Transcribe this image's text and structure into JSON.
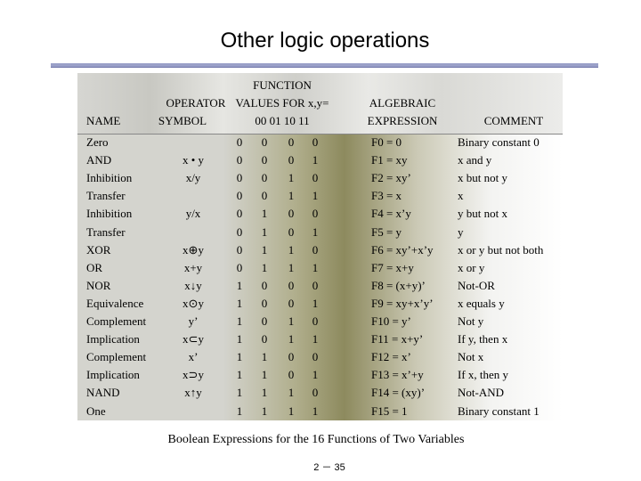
{
  "title": "Other logic operations",
  "headers": {
    "name": "NAME",
    "operator_line1": "OPERATOR",
    "operator_line2": "SYMBOL",
    "function_line1": "FUNCTION",
    "function_line2": "VALUES FOR x,y=",
    "function_line3": "00  01  10  11",
    "algebraic_line1": "ALGEBRAIC",
    "algebraic_line2": "EXPRESSION",
    "comment": "COMMENT"
  },
  "rows": [
    {
      "name": "Zero",
      "op": "",
      "v": [
        "0",
        "0",
        "0",
        "0"
      ],
      "alg": "F0 = 0",
      "comment": "Binary constant 0"
    },
    {
      "name": "AND",
      "op": "x • y",
      "v": [
        "0",
        "0",
        "0",
        "1"
      ],
      "alg": "F1 = xy",
      "comment": "x and y"
    },
    {
      "name": "Inhibition",
      "op": "x/y",
      "v": [
        "0",
        "0",
        "1",
        "0"
      ],
      "alg": "F2 = xy’",
      "comment": "x but not y"
    },
    {
      "name": "Transfer",
      "op": "",
      "v": [
        "0",
        "0",
        "1",
        "1"
      ],
      "alg": "F3 = x",
      "comment": "x"
    },
    {
      "name": "Inhibition",
      "op": "y/x",
      "v": [
        "0",
        "1",
        "0",
        "0"
      ],
      "alg": "F4 = x’y",
      "comment": "y but not x"
    },
    {
      "name": "Transfer",
      "op": "",
      "v": [
        "0",
        "1",
        "0",
        "1"
      ],
      "alg": "F5 = y",
      "comment": "y"
    },
    {
      "name": "XOR",
      "op": "x⊕y",
      "v": [
        "0",
        "1",
        "1",
        "0"
      ],
      "alg": "F6 = xy’+x’y",
      "comment": "x or y but not both"
    },
    {
      "name": "OR",
      "op": "x+y",
      "v": [
        "0",
        "1",
        "1",
        "1"
      ],
      "alg": "F7 = x+y",
      "comment": "x or y"
    },
    {
      "name": "NOR",
      "op": "x↓y",
      "v": [
        "1",
        "0",
        "0",
        "0"
      ],
      "alg": "F8 = (x+y)’",
      "comment": "Not-OR"
    },
    {
      "name": "Equivalence",
      "op": "x⊙y",
      "v": [
        "1",
        "0",
        "0",
        "1"
      ],
      "alg": "F9 = xy+x’y’",
      "comment": "x equals y"
    },
    {
      "name": "Complement",
      "op": "y’",
      "v": [
        "1",
        "0",
        "1",
        "0"
      ],
      "alg": "F10 = y’",
      "comment": "Not y"
    },
    {
      "name": "Implication",
      "op": "x⊂y",
      "v": [
        "1",
        "0",
        "1",
        "1"
      ],
      "alg": "F11 = x+y’",
      "comment": "If y, then x"
    },
    {
      "name": "Complement",
      "op": "x’",
      "v": [
        "1",
        "1",
        "0",
        "0"
      ],
      "alg": "F12 = x’",
      "comment": "Not x"
    },
    {
      "name": "Implication",
      "op": "x⊃y",
      "v": [
        "1",
        "1",
        "0",
        "1"
      ],
      "alg": "F13 = x’+y",
      "comment": "If x, then y"
    },
    {
      "name": "NAND",
      "op": "x↑y",
      "v": [
        "1",
        "1",
        "1",
        "0"
      ],
      "alg": "F14 = (xy)’",
      "comment": "Not-AND"
    },
    {
      "name": "One",
      "op": "",
      "v": [
        "1",
        "1",
        "1",
        "1"
      ],
      "alg": "F15 = 1",
      "comment": "Binary constant 1"
    }
  ],
  "caption": "Boolean Expressions for the 16 Functions of Two Variables",
  "page_number": "2 － 35"
}
